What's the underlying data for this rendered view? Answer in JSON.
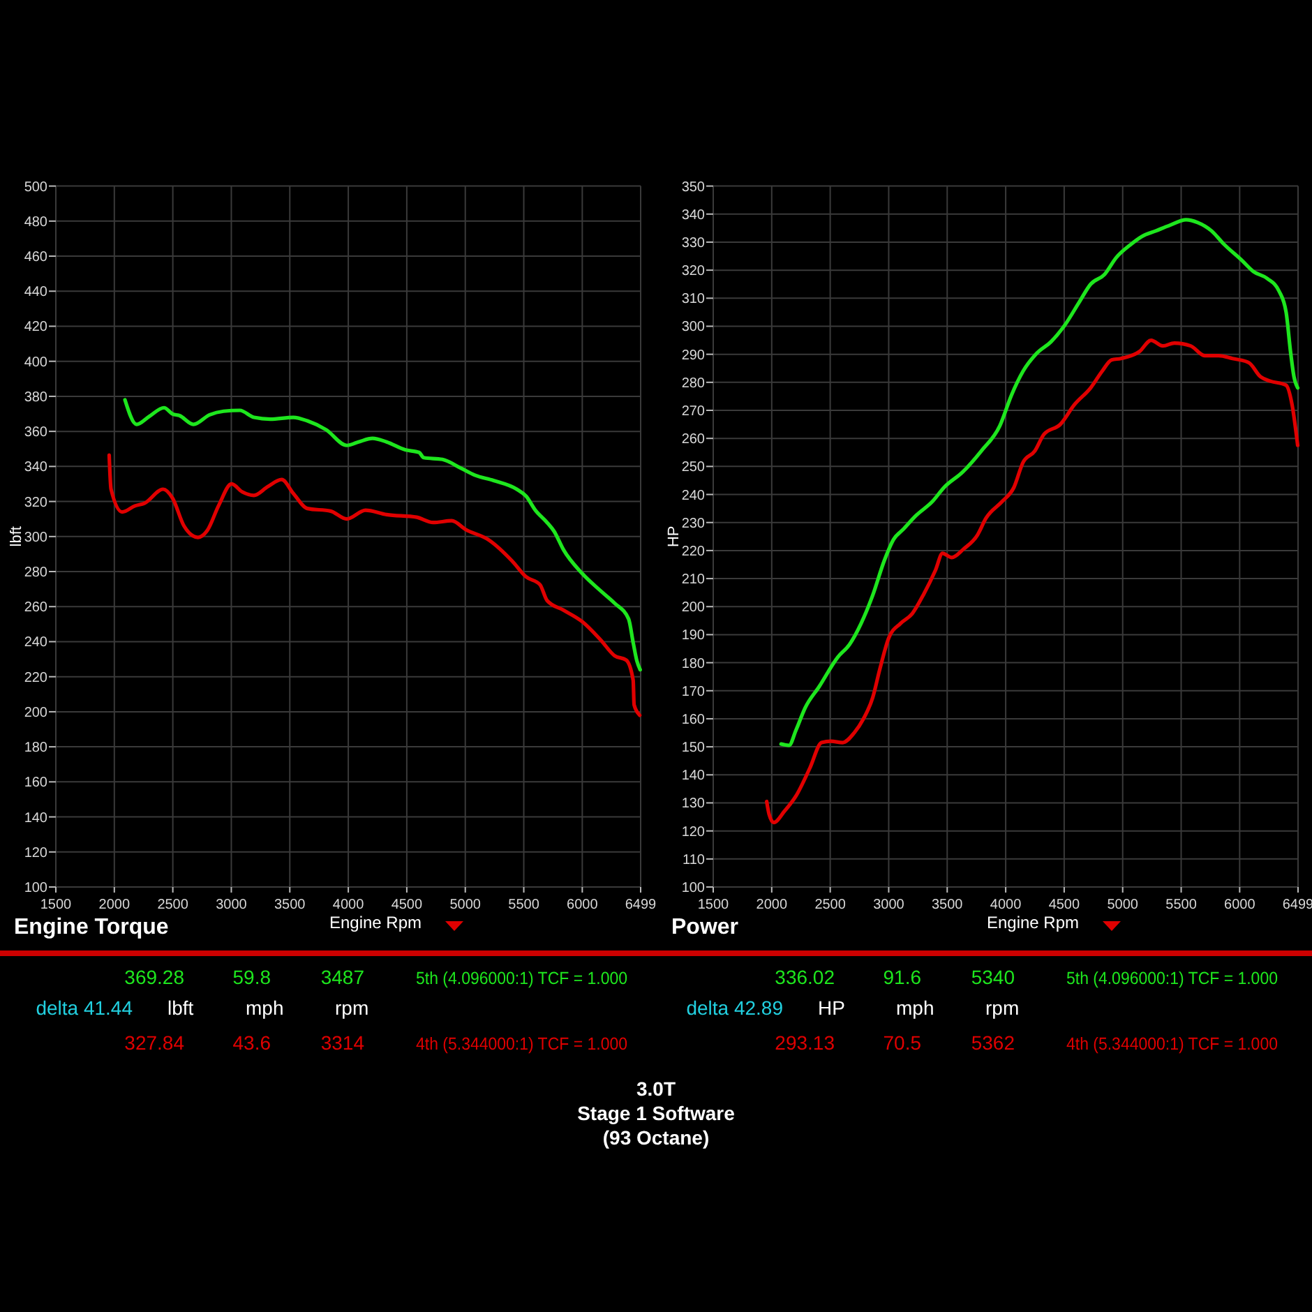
{
  "chart_data": [
    {
      "type": "line",
      "title": "Engine Torque",
      "xlabel": "Engine Rpm",
      "ylabel": "lbft",
      "xlim": [
        1500,
        6499
      ],
      "xticks": [
        1500,
        2000,
        2500,
        3000,
        3500,
        4000,
        4500,
        5000,
        5500,
        6000,
        6499
      ],
      "ylim": [
        100,
        500
      ],
      "yticks": [
        100,
        120,
        140,
        160,
        180,
        200,
        220,
        240,
        260,
        280,
        300,
        320,
        340,
        360,
        380,
        400,
        420,
        440,
        460,
        480,
        500
      ],
      "grid": true,
      "legend": "bottom",
      "series": [
        {
          "name": "5th (4.096000:1) TCF = 1.000",
          "color": "#1ee61e",
          "x": [
            2091,
            2190,
            2298,
            2425,
            2497,
            2557,
            2676,
            2815,
            2934,
            3073,
            3193,
            3332,
            3531,
            3650,
            3809,
            3988,
            4088,
            4207,
            4327,
            4486,
            4605,
            4645,
            4804,
            4963,
            5082,
            5241,
            5440,
            5520,
            5599,
            5699,
            5759,
            5839,
            5998,
            6157,
            6276,
            6396,
            6435,
            6467,
            6495
          ],
          "values": [
            378,
            364,
            368.5,
            373.5,
            370,
            369,
            364,
            369.5,
            371.5,
            372,
            368,
            367,
            368,
            366,
            361,
            352,
            354,
            356,
            354,
            349.5,
            348,
            345,
            344,
            339,
            335,
            332,
            327,
            323,
            315,
            308,
            303,
            292.5,
            279,
            269,
            262,
            253,
            239.5,
            229,
            224
          ]
        },
        {
          "name": "4th (5.344000:1) TCF = 1.000",
          "color": "#e00000",
          "x": [
            1956,
            1972,
            2067,
            2177,
            2258,
            2417,
            2497,
            2596,
            2715,
            2795,
            2894,
            3002,
            3093,
            3193,
            3312,
            3431,
            3531,
            3650,
            3849,
            3988,
            4147,
            4327,
            4585,
            4725,
            4884,
            5003,
            5202,
            5401,
            5520,
            5639,
            5699,
            5839,
            5998,
            6157,
            6276,
            6376,
            6435,
            6443,
            6491
          ],
          "values": [
            346.5,
            327,
            314,
            317.5,
            319,
            327,
            322,
            306,
            299.5,
            303.5,
            318,
            330,
            325.5,
            323.5,
            328.5,
            332.5,
            324.5,
            316,
            314.5,
            310,
            315,
            312.5,
            311,
            308,
            309,
            304,
            298,
            286,
            277,
            272.5,
            263.5,
            258,
            251.5,
            241,
            232,
            229.5,
            218,
            204,
            198
          ]
        }
      ],
      "annotations": [
        "369.28",
        "59.8",
        "3487",
        "delta 41.44",
        "lbft",
        "mph",
        "rpm",
        "327.84",
        "43.6",
        "3314",
        "3.0T",
        "Stage 1 Software",
        "(93 Octane)"
      ]
    },
    {
      "type": "line",
      "title": "Power",
      "xlabel": "Engine Rpm",
      "ylabel": "HP",
      "xlim": [
        1500,
        6499
      ],
      "xticks": [
        1500,
        2000,
        2500,
        3000,
        3500,
        4000,
        4500,
        5000,
        5500,
        6000,
        6499
      ],
      "ylim": [
        100,
        350
      ],
      "yticks": [
        100,
        110,
        120,
        130,
        140,
        150,
        160,
        170,
        180,
        190,
        200,
        210,
        220,
        230,
        240,
        250,
        260,
        270,
        280,
        290,
        300,
        310,
        320,
        330,
        340,
        350
      ],
      "grid": true,
      "legend": "bottom",
      "series": [
        {
          "name": "5th (4.096000:1) TCF = 1.000",
          "color": "#1ee61e",
          "x": [
            2080,
            2148,
            2208,
            2287,
            2406,
            2565,
            2665,
            2764,
            2863,
            2963,
            3042,
            3122,
            3234,
            3374,
            3473,
            3632,
            3791,
            3950,
            4050,
            4149,
            4269,
            4388,
            4507,
            4627,
            4726,
            4845,
            4945,
            5064,
            5163,
            5283,
            5402,
            5542,
            5641,
            5760,
            5860,
            6019,
            6118,
            6237,
            6337,
            6397,
            6436,
            6464,
            6496
          ],
          "values": [
            151,
            150.5,
            156,
            164,
            171.5,
            182,
            186.5,
            194,
            204,
            216.5,
            224,
            227.5,
            232.5,
            237.5,
            242.5,
            248,
            255.5,
            264.5,
            275.5,
            284,
            290.5,
            294.5,
            300.5,
            308.5,
            315,
            318.5,
            324.5,
            329,
            332,
            334,
            336,
            338,
            337,
            334,
            329.5,
            323.5,
            319.5,
            317,
            312.5,
            305,
            290.5,
            282,
            278
          ]
        },
        {
          "name": "4th (5.344000:1) TCF = 1.000",
          "color": "#e00000",
          "x": [
            1957,
            1977,
            2017,
            2108,
            2208,
            2327,
            2426,
            2506,
            2606,
            2705,
            2784,
            2863,
            2923,
            3002,
            3101,
            3201,
            3300,
            3400,
            3460,
            3539,
            3639,
            3758,
            3831,
            3970,
            4070,
            4149,
            4249,
            4328,
            4467,
            4587,
            4726,
            4825,
            4905,
            4985,
            5144,
            5243,
            5343,
            5442,
            5581,
            5701,
            5820,
            5939,
            6079,
            6178,
            6257,
            6396,
            6448,
            6496
          ],
          "values": [
            130.5,
            126,
            123,
            127,
            132.5,
            142.5,
            151.5,
            152,
            151.5,
            155,
            160,
            167.5,
            177.5,
            189,
            194,
            197.5,
            204.5,
            213,
            219,
            217.5,
            220.5,
            225.5,
            231.5,
            237.5,
            242.5,
            251.5,
            255.5,
            261.5,
            265,
            272,
            278,
            284,
            288,
            288.5,
            291,
            295,
            293,
            294,
            293,
            289.5,
            289.5,
            288.5,
            287,
            282,
            280.5,
            279,
            272,
            257.5
          ]
        }
      ],
      "annotations": [
        "336.02",
        "91.6",
        "5340",
        "delta 42.89",
        "HP",
        "mph",
        "rpm",
        "293.13",
        "70.5",
        "5362"
      ]
    }
  ]
}
